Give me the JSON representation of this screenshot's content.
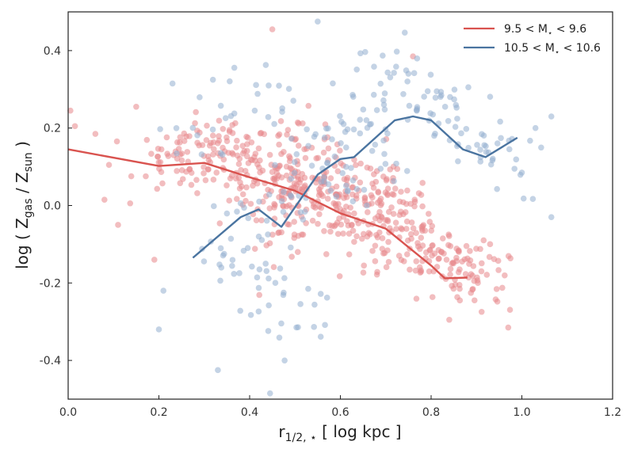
{
  "chart_data": {
    "type": "scatter",
    "xlabel": {
      "main": "r",
      "sub": "1/2, ⋆",
      "unit": " [ log kpc ]"
    },
    "ylabel": {
      "prefix": "log ( Z",
      "sub1": "gas",
      "mid": " / Z",
      "sub2": "sun",
      "suffix": " )"
    },
    "xlim": [
      0.0,
      1.2
    ],
    "ylim": [
      -0.5,
      0.5
    ],
    "xticks": [
      "0.0",
      "0.2",
      "0.4",
      "0.6",
      "0.8",
      "1.0",
      "1.2"
    ],
    "xtick_values": [
      0.0,
      0.2,
      0.4,
      0.6,
      0.8,
      1.0,
      1.2
    ],
    "yticks": [
      "-0.4",
      "-0.2",
      "0.0",
      "0.2",
      "0.4"
    ],
    "ytick_values": [
      -0.4,
      -0.2,
      0.0,
      0.2,
      0.4
    ],
    "grid": false,
    "legend_position": "top-right",
    "series": [
      {
        "name": "9.5 < M⋆ < 9.6",
        "legend": {
          "pre": "9.5 < M",
          "sub": "⋆",
          "post": " < 9.6"
        },
        "color": "#d9534f",
        "point_color": "#e8868a",
        "median_line": {
          "x": [
            0.0,
            0.2,
            0.3,
            0.4,
            0.5,
            0.6,
            0.7,
            0.8,
            0.83,
            0.88
          ],
          "y": [
            0.145,
            0.102,
            0.11,
            0.073,
            0.038,
            -0.02,
            -0.06,
            -0.155,
            -0.188,
            -0.186
          ]
        },
        "scatter_centers": [
          [
            0.3,
            0.15
          ],
          [
            0.35,
            0.12
          ],
          [
            0.4,
            0.1
          ],
          [
            0.45,
            0.08
          ],
          [
            0.5,
            0.05
          ],
          [
            0.55,
            0.02
          ],
          [
            0.6,
            -0.01
          ],
          [
            0.65,
            -0.03
          ],
          [
            0.7,
            -0.06
          ],
          [
            0.75,
            -0.09
          ],
          [
            0.8,
            -0.12
          ],
          [
            0.85,
            -0.17
          ],
          [
            0.9,
            -0.2
          ],
          [
            0.25,
            0.12
          ],
          [
            0.5,
            0.15
          ],
          [
            0.45,
            -0.05
          ],
          [
            0.6,
            0.08
          ],
          [
            0.7,
            0.02
          ]
        ],
        "scatter_outliers": [
          [
            0.005,
            0.245
          ],
          [
            0.015,
            0.205
          ],
          [
            0.06,
            0.185
          ],
          [
            0.15,
            0.255
          ],
          [
            0.11,
            -0.05
          ],
          [
            0.08,
            0.015
          ],
          [
            0.09,
            0.105
          ],
          [
            0.19,
            -0.14
          ],
          [
            0.45,
            0.455
          ],
          [
            0.97,
            -0.315
          ],
          [
            0.84,
            -0.295
          ],
          [
            0.76,
            0.385
          ]
        ]
      },
      {
        "name": "10.5 < M⋆ < 10.6",
        "legend": {
          "pre": "10.5 < M",
          "sub": "⋆",
          "post": " < 10.6"
        },
        "color": "#4a74a0",
        "point_color": "#94afd0",
        "median_line": {
          "x": [
            0.275,
            0.38,
            0.42,
            0.47,
            0.55,
            0.6,
            0.63,
            0.72,
            0.76,
            0.8,
            0.87,
            0.92,
            0.99
          ],
          "y": [
            -0.135,
            -0.03,
            -0.01,
            -0.055,
            0.08,
            0.12,
            0.125,
            0.22,
            0.23,
            0.22,
            0.145,
            0.125,
            0.175
          ]
        },
        "scatter_centers": [
          [
            0.35,
            -0.15
          ],
          [
            0.4,
            -0.05
          ],
          [
            0.45,
            -0.2
          ],
          [
            0.5,
            0.02
          ],
          [
            0.55,
            0.1
          ],
          [
            0.6,
            0.2
          ],
          [
            0.65,
            0.25
          ],
          [
            0.7,
            0.15
          ],
          [
            0.75,
            0.3
          ],
          [
            0.8,
            0.25
          ],
          [
            0.85,
            0.2
          ],
          [
            0.9,
            0.15
          ],
          [
            0.95,
            0.1
          ],
          [
            0.3,
            0.2
          ],
          [
            0.4,
            0.3
          ],
          [
            0.5,
            -0.3
          ],
          [
            0.6,
            0.05
          ],
          [
            0.7,
            0.35
          ]
        ],
        "scatter_outliers": [
          [
            0.55,
            0.475
          ],
          [
            0.2,
            -0.32
          ],
          [
            0.33,
            -0.425
          ],
          [
            0.445,
            -0.485
          ],
          [
            1.065,
            -0.03
          ],
          [
            1.065,
            0.23
          ],
          [
            0.21,
            -0.22
          ],
          [
            0.23,
            0.315
          ],
          [
            1.0,
            0.085
          ],
          [
            1.03,
            0.2
          ]
        ]
      }
    ]
  }
}
